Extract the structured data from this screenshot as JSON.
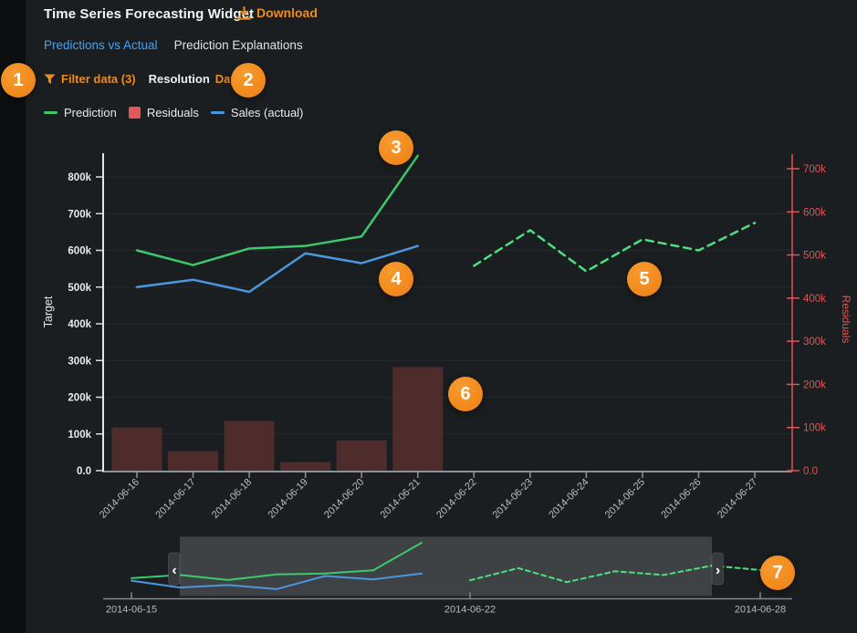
{
  "window": {
    "title": "Time Series Forecasting Widget"
  },
  "header": {
    "download_label": "Download"
  },
  "tabs": {
    "items": [
      {
        "label": "Predictions vs Actual",
        "active": true
      },
      {
        "label": "Prediction Explanations",
        "active": false
      }
    ]
  },
  "toolbar": {
    "filter_label": "Filter data (3)",
    "resolution_label": "Resolution",
    "resolution_value": "Day"
  },
  "legend": {
    "items": [
      {
        "label": "Prediction",
        "marker": "line",
        "color": "#3cc96c"
      },
      {
        "label": "Residuals",
        "marker": "square",
        "color": "#e25757"
      },
      {
        "label": "Sales (actual)",
        "marker": "line",
        "color": "#4b97dd"
      }
    ]
  },
  "icons": {
    "download": "tray-arrow-down",
    "filter": "funnel",
    "resolution_dropdown": "chevron-down",
    "nav_left": "chevron-left",
    "nav_right": "chevron-right"
  },
  "annotations": {
    "numbers": [
      "1",
      "2",
      "3",
      "4",
      "5",
      "6",
      "7"
    ]
  },
  "colors": {
    "background": "#1b1e21",
    "accent_orange": "#ef8a1d",
    "tab_active_blue": "#41a4f5",
    "prediction_green": "#3cc96c",
    "forecast_green_dashed": "#4ce081",
    "actual_blue": "#4b97dd",
    "residual_bar": "#4e2c2c",
    "right_axis_red": "#e15454"
  },
  "chart_data": [
    {
      "id": "main-forecast-chart",
      "type": "combo",
      "x_tick_labels": [
        "2014-06-16",
        "2014-06-17",
        "2014-06-18",
        "2014-06-19",
        "2014-06-20",
        "2014-06-21",
        "2014-06-22",
        "2014-06-23",
        "2014-06-24",
        "2014-06-25",
        "2014-06-26",
        "2014-06-27"
      ],
      "left_axis": {
        "title": "Target",
        "min": 0,
        "max": 800000,
        "tick_labels": [
          "0.0",
          "100k",
          "200k",
          "300k",
          "400k",
          "500k",
          "600k",
          "700k",
          "800k"
        ],
        "color": "#e9ebed"
      },
      "right_axis": {
        "title": "Residuals",
        "min": 0,
        "max": 700000,
        "tick_labels": [
          "0.0",
          "100k",
          "200k",
          "300k",
          "400k",
          "500k",
          "600k",
          "700k"
        ],
        "color": "#e15454"
      },
      "grid": true,
      "legend_position": "top-left",
      "series": [
        {
          "name": "Prediction",
          "type": "line",
          "dash": false,
          "color": "#3cc96c",
          "axis": "left",
          "data": [
            [
              "2014-06-16",
              600000
            ],
            [
              "2014-06-17",
              560000
            ],
            [
              "2014-06-18",
              605000
            ],
            [
              "2014-06-19",
              612000
            ],
            [
              "2014-06-20",
              638000
            ],
            [
              "2014-06-21",
              858000
            ]
          ]
        },
        {
          "name": "Prediction (forecast)",
          "type": "line",
          "dash": true,
          "color": "#4ce081",
          "axis": "left",
          "data": [
            [
              "2014-06-22",
              558000
            ],
            [
              "2014-06-23",
              655000
            ],
            [
              "2014-06-24",
              543000
            ],
            [
              "2014-06-25",
              630000
            ],
            [
              "2014-06-26",
              600000
            ],
            [
              "2014-06-27",
              675000
            ]
          ]
        },
        {
          "name": "Sales (actual)",
          "type": "line",
          "dash": false,
          "color": "#4b97dd",
          "axis": "left",
          "data": [
            [
              "2014-06-16",
              500000
            ],
            [
              "2014-06-17",
              520000
            ],
            [
              "2014-06-18",
              487000
            ],
            [
              "2014-06-19",
              592000
            ],
            [
              "2014-06-20",
              565000
            ],
            [
              "2014-06-21",
              612000
            ]
          ]
        },
        {
          "name": "Residuals",
          "type": "bar",
          "color": "#4e2c2c",
          "axis": "right",
          "data": [
            [
              "2014-06-16",
              100000
            ],
            [
              "2014-06-17",
              45000
            ],
            [
              "2014-06-18",
              115000
            ],
            [
              "2014-06-19",
              20000
            ],
            [
              "2014-06-20",
              70000
            ],
            [
              "2014-06-21",
              240000
            ]
          ]
        }
      ]
    },
    {
      "id": "navigator",
      "type": "line",
      "x_tick_labels": [
        "2014-06-15",
        "2014-06-22",
        "2014-06-28"
      ],
      "selection": {
        "start": "2014-06-16",
        "end": "2014-06-27"
      },
      "series": [
        {
          "name": "Prediction",
          "type": "line",
          "dash": false,
          "color": "#3cc96c",
          "data": [
            [
              "2014-06-15",
              575000
            ],
            [
              "2014-06-16",
              600000
            ],
            [
              "2014-06-17",
              560000
            ],
            [
              "2014-06-18",
              605000
            ],
            [
              "2014-06-19",
              612000
            ],
            [
              "2014-06-20",
              638000
            ],
            [
              "2014-06-21",
              858000
            ]
          ]
        },
        {
          "name": "Sales (actual)",
          "type": "line",
          "dash": false,
          "color": "#4b97dd",
          "data": [
            [
              "2014-06-15",
              555000
            ],
            [
              "2014-06-16",
              500000
            ],
            [
              "2014-06-17",
              520000
            ],
            [
              "2014-06-18",
              487000
            ],
            [
              "2014-06-19",
              592000
            ],
            [
              "2014-06-20",
              565000
            ],
            [
              "2014-06-21",
              612000
            ]
          ]
        },
        {
          "name": "Prediction (forecast)",
          "type": "line",
          "dash": true,
          "color": "#4ce081",
          "data": [
            [
              "2014-06-22",
              558000
            ],
            [
              "2014-06-23",
              655000
            ],
            [
              "2014-06-24",
              543000
            ],
            [
              "2014-06-25",
              630000
            ],
            [
              "2014-06-26",
              600000
            ],
            [
              "2014-06-27",
              675000
            ],
            [
              "2014-06-28",
              640000
            ]
          ]
        }
      ]
    }
  ]
}
